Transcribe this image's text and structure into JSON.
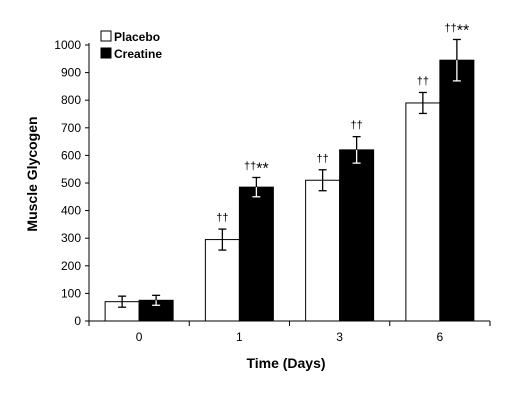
{
  "chart_data": {
    "type": "bar",
    "title": "",
    "xlabel": "Time (Days)",
    "ylabel": "Muscle Glycogen",
    "categories": [
      "0",
      "1",
      "3",
      "6"
    ],
    "ylim": [
      0,
      1000
    ],
    "yticks": [
      0,
      100,
      200,
      300,
      400,
      500,
      600,
      700,
      800,
      900,
      1000
    ],
    "grid": false,
    "legend_position": "top-left",
    "series": [
      {
        "name": "Placebo",
        "fill": "#ffffff",
        "values": [
          70,
          295,
          510,
          790
        ],
        "errors": [
          20,
          38,
          38,
          38
        ],
        "annotations": [
          "",
          "††",
          "††",
          "††"
        ]
      },
      {
        "name": "Creatine",
        "fill": "#000000",
        "values": [
          75,
          485,
          620,
          945
        ],
        "errors": [
          18,
          35,
          48,
          75
        ],
        "annotations": [
          "",
          "††**",
          "††",
          "††**"
        ]
      }
    ]
  }
}
